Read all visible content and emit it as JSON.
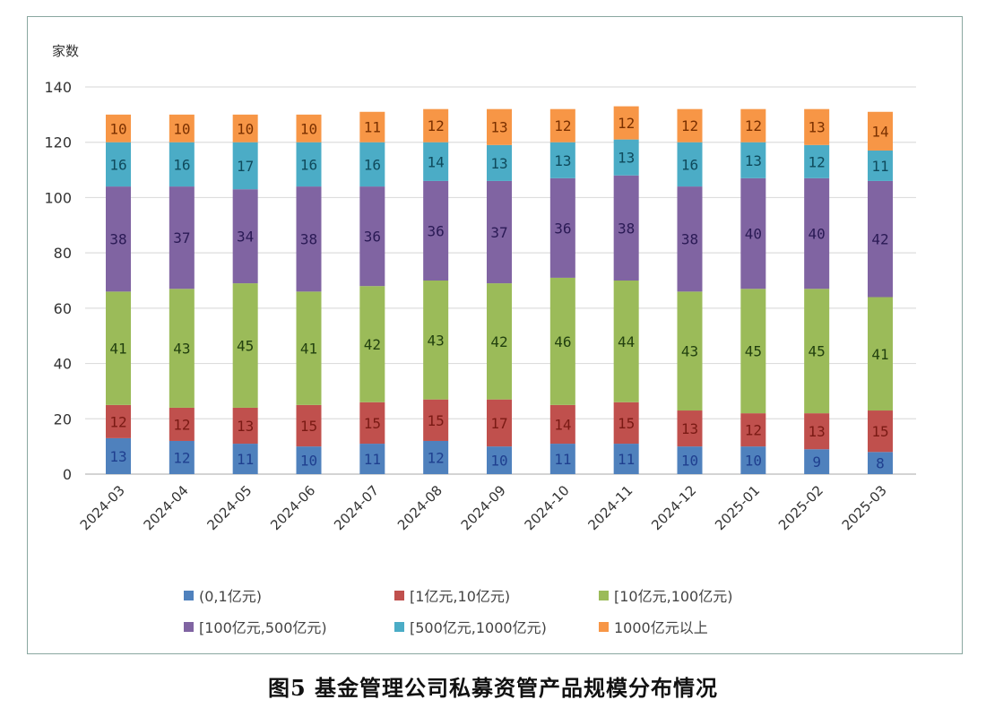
{
  "caption": "图5   基金管理公司私募资管产品规模分布情况",
  "chart_data": {
    "type": "bar",
    "stacked": true,
    "title": "",
    "ylabel": "家数",
    "xlabel": "",
    "ylim": [
      0,
      140
    ],
    "yticks": [
      0,
      20,
      40,
      60,
      80,
      100,
      120,
      140
    ],
    "grid": true,
    "legend_position": "bottom",
    "categories": [
      "2024-03",
      "2024-04",
      "2024-05",
      "2024-06",
      "2024-07",
      "2024-08",
      "2024-09",
      "2024-10",
      "2024-11",
      "2024-12",
      "2025-01",
      "2025-02",
      "2025-03"
    ],
    "series": [
      {
        "name": "(0,1亿元)",
        "color": "#4f81bd",
        "label_color": "#1f3f8f",
        "values": [
          13,
          12,
          11,
          10,
          11,
          12,
          10,
          11,
          11,
          10,
          10,
          9,
          8
        ]
      },
      {
        "name": "[1亿元,10亿元)",
        "color": "#c0504d",
        "label_color": "#7a1a14",
        "values": [
          12,
          12,
          13,
          15,
          15,
          15,
          17,
          14,
          15,
          13,
          12,
          13,
          15
        ]
      },
      {
        "name": "[10亿元,100亿元)",
        "color": "#9bbb59",
        "label_color": "#22400f",
        "values": [
          41,
          43,
          45,
          41,
          42,
          43,
          42,
          46,
          44,
          43,
          45,
          45,
          41
        ]
      },
      {
        "name": "[100亿元,500亿元)",
        "color": "#8064a2",
        "label_color": "#2a1a55",
        "values": [
          38,
          37,
          34,
          38,
          36,
          36,
          37,
          36,
          38,
          38,
          40,
          40,
          42
        ]
      },
      {
        "name": "[500亿元,1000亿元)",
        "color": "#4bacc6",
        "label_color": "#0f4a5c",
        "values": [
          16,
          16,
          17,
          16,
          16,
          14,
          13,
          13,
          13,
          16,
          13,
          12,
          11
        ]
      },
      {
        "name": "1000亿元以上",
        "color": "#f79646",
        "label_color": "#7a3000",
        "values": [
          10,
          10,
          10,
          10,
          11,
          12,
          13,
          12,
          12,
          12,
          12,
          13,
          14
        ]
      }
    ]
  }
}
